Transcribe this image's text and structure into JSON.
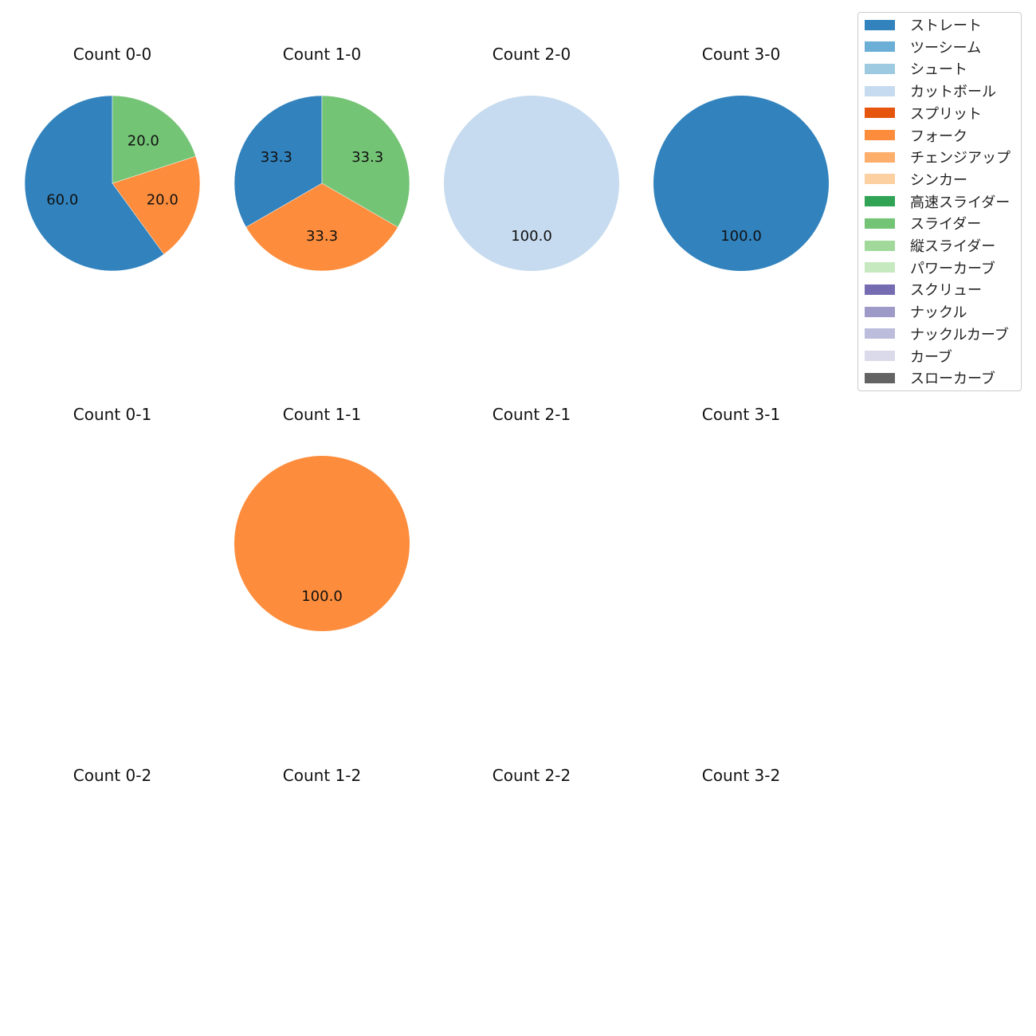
{
  "chart_data": {
    "type": "pie",
    "grid": "4x3",
    "legend_position": "top-right",
    "legend": [
      {
        "name": "ストレート",
        "color": "#3182bd"
      },
      {
        "name": "ツーシーム",
        "color": "#6baed6"
      },
      {
        "name": "シュート",
        "color": "#9ecae1"
      },
      {
        "name": "カットボール",
        "color": "#c6dbef"
      },
      {
        "name": "スプリット",
        "color": "#e6550d"
      },
      {
        "name": "フォーク",
        "color": "#fd8d3c"
      },
      {
        "name": "チェンジアップ",
        "color": "#fdae6b"
      },
      {
        "name": "シンカー",
        "color": "#fdd0a2"
      },
      {
        "name": "高速スライダー",
        "color": "#31a354"
      },
      {
        "name": "スライダー",
        "color": "#74c476"
      },
      {
        "name": "縦スライダー",
        "color": "#a1d99b"
      },
      {
        "name": "パワーカーブ",
        "color": "#c7e9c0"
      },
      {
        "name": "スクリュー",
        "color": "#756bb1"
      },
      {
        "name": "ナックル",
        "color": "#9e9ac8"
      },
      {
        "name": "ナックルカーブ",
        "color": "#bcbddc"
      },
      {
        "name": "カーブ",
        "color": "#dadaeb"
      },
      {
        "name": "スローカーブ",
        "color": "#636363"
      }
    ],
    "panels": [
      {
        "title": "Count 0-0",
        "slices": [
          {
            "pitch": "ストレート",
            "value": 60.0
          },
          {
            "pitch": "フォーク",
            "value": 20.0
          },
          {
            "pitch": "スライダー",
            "value": 20.0
          }
        ]
      },
      {
        "title": "Count 1-0",
        "slices": [
          {
            "pitch": "ストレート",
            "value": 33.3
          },
          {
            "pitch": "フォーク",
            "value": 33.3
          },
          {
            "pitch": "スライダー",
            "value": 33.3
          }
        ]
      },
      {
        "title": "Count 2-0",
        "slices": [
          {
            "pitch": "カットボール",
            "value": 100.0
          }
        ]
      },
      {
        "title": "Count 3-0",
        "slices": [
          {
            "pitch": "ストレート",
            "value": 100.0
          }
        ]
      },
      {
        "title": "Count 0-1",
        "slices": []
      },
      {
        "title": "Count 1-1",
        "slices": [
          {
            "pitch": "フォーク",
            "value": 100.0
          }
        ]
      },
      {
        "title": "Count 2-1",
        "slices": []
      },
      {
        "title": "Count 3-1",
        "slices": []
      },
      {
        "title": "Count 0-2",
        "slices": []
      },
      {
        "title": "Count 1-2",
        "slices": []
      },
      {
        "title": "Count 2-2",
        "slices": []
      },
      {
        "title": "Count 3-2",
        "slices": []
      }
    ]
  }
}
